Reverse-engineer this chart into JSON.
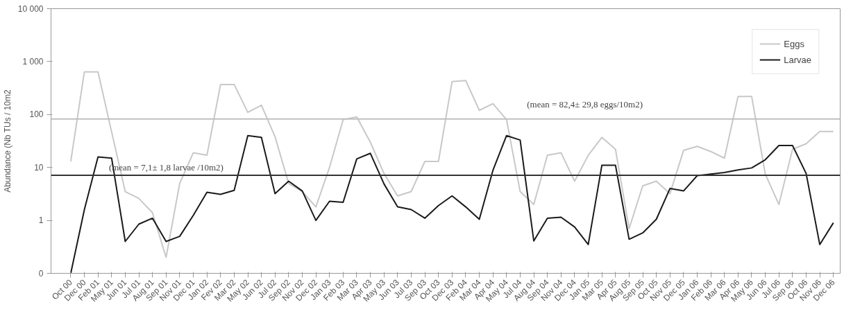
{
  "chart_data": {
    "type": "line",
    "ylabel": "Abundance (Nb TUs / 10m2",
    "categories": [
      "Oct 00",
      "Dec 00",
      "Feb 01",
      "May 01",
      "Jun 01",
      "Jul 01",
      "Aug 01",
      "Sep 01",
      "Nov 01",
      "Dec 01",
      "Jan 02",
      "Fev 02",
      "Mar 02",
      "May 02",
      "Jun 02",
      "Jul 02",
      "Sep 02",
      "Nov 02",
      "Dec 02",
      "Jan 03",
      "Feb 03",
      "Mar 03",
      "Apr 03",
      "May 03",
      "Jun 03",
      "Jul 03",
      "Sep 03",
      "Oct 03",
      "Dec 03",
      "Feb 04",
      "Mar 04",
      "Apr 04",
      "May 04",
      "Jul 04",
      "Aug 04",
      "Sep 04",
      "Nov 04",
      "Dec 04",
      "Jan 05",
      "Mar 05",
      "Apr 05",
      "Aug 05",
      "Sep 05",
      "Oct 05",
      "Nov 05",
      "Dec 05",
      "Jan 06",
      "Feb 06",
      "Mar 06",
      "Apr 06",
      "May 06",
      "Jun 06",
      "Jul 06",
      "Sep 06",
      "Oct 06",
      "Nov 06",
      "Dec 06"
    ],
    "series": [
      {
        "name": "Eggs",
        "color": "#c8c8c8",
        "values": [
          13,
          640,
          640,
          47,
          3.5,
          2.6,
          1.4,
          0.2,
          5,
          19,
          17,
          370,
          370,
          110,
          150,
          38,
          5,
          3.5,
          1.8,
          10,
          80,
          90,
          30,
          7.7,
          2.9,
          3.5,
          13,
          13,
          420,
          440,
          120,
          160,
          80,
          3.5,
          2,
          17,
          19,
          5.5,
          17,
          37,
          22,
          0.7,
          4.5,
          5.5,
          3.2,
          21,
          25,
          20,
          15,
          220,
          220,
          7.5,
          2,
          22,
          28,
          48,
          48
        ]
      },
      {
        "name": "Larvae",
        "color": "#1a1a1a",
        "values": [
          0.1,
          1.6,
          15.8,
          15,
          0.4,
          0.85,
          1.1,
          0.4,
          0.5,
          1.25,
          3.4,
          3.1,
          3.7,
          40,
          37,
          3.2,
          5.5,
          3.6,
          1,
          2.3,
          2.2,
          14.5,
          18.5,
          4.9,
          1.8,
          1.6,
          1.1,
          1.9,
          2.9,
          1.8,
          1.05,
          8.8,
          40,
          33,
          0.41,
          1.1,
          1.15,
          0.75,
          0.35,
          11,
          11,
          0.44,
          0.58,
          1.05,
          4,
          3.6,
          7,
          7.5,
          8,
          9,
          9.8,
          14,
          26,
          26,
          7.7,
          0.35,
          0.9
        ]
      }
    ],
    "log": true,
    "ylim": [
      0.1,
      10000
    ],
    "yticks": [
      {
        "value": 0.1,
        "label": "0"
      },
      1,
      10,
      100,
      {
        "value": 1000,
        "label": "1 000"
      },
      {
        "value": 10000,
        "label": "10 000"
      }
    ],
    "ref_lines": [
      {
        "axis": "y",
        "value": 82.4,
        "label": "(mean = 82,4± 29,8 eggs/10m2)",
        "color": "#c0c0c0"
      },
      {
        "axis": "y",
        "value": 7.1,
        "label": "(mean = 7,1± 1,8 larvae /10m2)",
        "color": "#333333"
      }
    ],
    "grid": false,
    "legend": "top right",
    "marker": "none",
    "line_style": "solid"
  }
}
